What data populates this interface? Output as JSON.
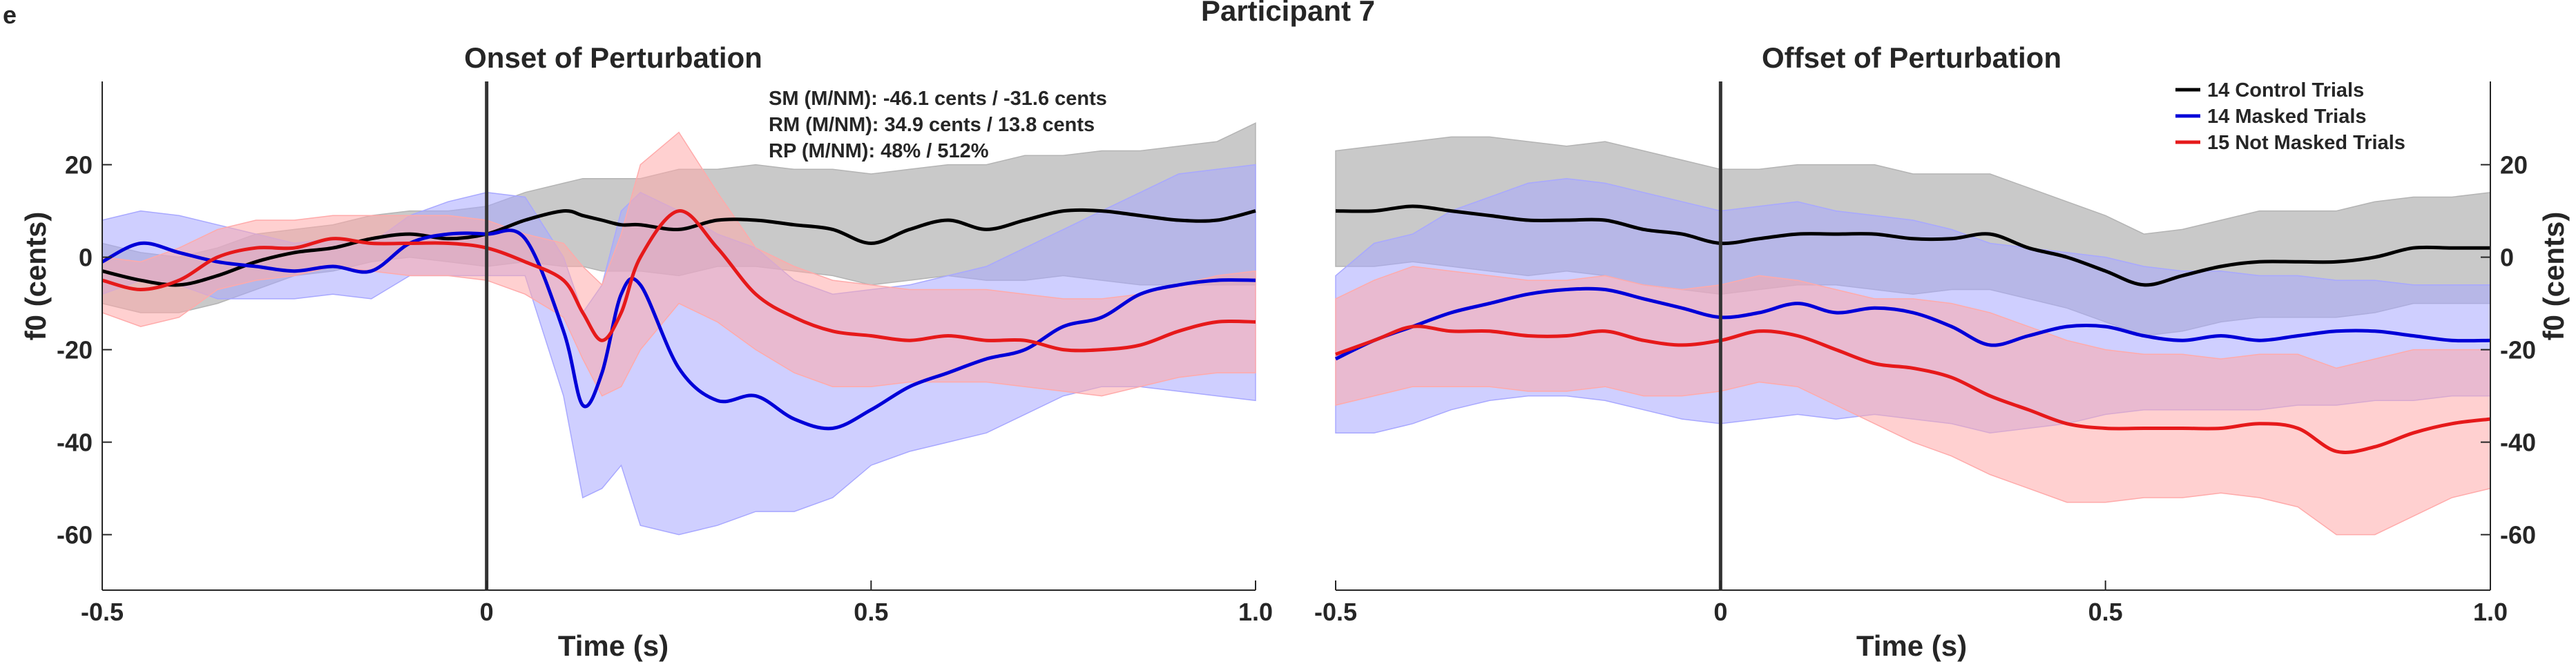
{
  "panel_letter": "e",
  "figure_title": "Participant 7",
  "colors": {
    "control": "#000000",
    "masked": "#0000d8",
    "not_masked": "#e6191a",
    "control_band": "#b4b4b4",
    "masked_band": "#a8a8ff",
    "not_masked_band": "#ffaaaa"
  },
  "chart_data": [
    {
      "type": "line",
      "title": "Onset of Perturbation",
      "xlabel": "Time (s)",
      "ylabel": "f0 (cents)",
      "xlim": [
        -0.5,
        1.0
      ],
      "ylim": [
        -72,
        38
      ],
      "xticks": [
        "-0.5",
        "0",
        "0.5",
        "1.0"
      ],
      "yticks": [
        "20",
        "0",
        "-20",
        "-40",
        "-60"
      ],
      "vline_x": 0,
      "annotations": [
        "SM (M/NM): -46.1 cents / -31.6 cents",
        "RM (M/NM): 34.9 cents / 13.8 cents",
        "RP (M/NM): 48% / 512%"
      ],
      "x": [
        -0.5,
        -0.45,
        -0.4,
        -0.35,
        -0.3,
        -0.25,
        -0.2,
        -0.15,
        -0.1,
        -0.05,
        0.0,
        0.05,
        0.1,
        0.125,
        0.15,
        0.175,
        0.2,
        0.25,
        0.3,
        0.35,
        0.4,
        0.45,
        0.5,
        0.55,
        0.6,
        0.65,
        0.7,
        0.75,
        0.8,
        0.85,
        0.9,
        0.95,
        1.0
      ],
      "series": [
        {
          "name": "14 Control Trials",
          "values": [
            -3,
            -5,
            -6,
            -4,
            -1,
            1,
            2,
            4,
            5,
            4,
            5,
            8,
            10,
            9,
            8,
            7,
            7,
            6,
            8,
            8,
            7,
            6,
            3,
            6,
            8,
            6,
            8,
            10,
            10,
            9,
            8,
            8,
            10
          ],
          "lower": [
            -10,
            -12,
            -12,
            -10,
            -7,
            -4,
            -3,
            -1,
            0,
            -1,
            -2,
            -1,
            -2,
            -2,
            -3,
            -3,
            -3,
            -4,
            -2,
            -2,
            -3,
            -4,
            -6,
            -5,
            -4,
            -5,
            -5,
            -4,
            -5,
            -6,
            -6,
            -6,
            -6
          ],
          "upper": [
            3,
            1,
            0,
            2,
            5,
            6,
            7,
            9,
            10,
            10,
            11,
            14,
            16,
            17,
            17,
            17,
            17,
            19,
            19,
            20,
            19,
            19,
            18,
            19,
            20,
            20,
            22,
            22,
            23,
            23,
            24,
            25,
            29
          ]
        },
        {
          "name": "14 Masked Trials",
          "values": [
            -1,
            3,
            1,
            -1,
            -2,
            -3,
            -2,
            -3,
            3,
            5,
            5,
            4,
            -16,
            -32,
            -25,
            -8,
            -6,
            -24,
            -31,
            -30,
            -35,
            -37,
            -33,
            -28,
            -25,
            -22,
            -20,
            -15,
            -13,
            -8,
            -6,
            -5,
            -5
          ],
          "lower": [
            -8,
            -5,
            -6,
            -9,
            -9,
            -9,
            -8,
            -9,
            -4,
            -4,
            -4,
            -4,
            -30,
            -52,
            -50,
            -45,
            -58,
            -60,
            -58,
            -55,
            -55,
            -52,
            -45,
            -42,
            -40,
            -38,
            -34,
            -30,
            -28,
            -28,
            -29,
            -30,
            -31
          ],
          "upper": [
            8,
            10,
            9,
            7,
            5,
            3,
            4,
            3,
            9,
            12,
            14,
            13,
            0,
            -12,
            -6,
            10,
            14,
            10,
            5,
            2,
            -5,
            -8,
            -7,
            -6,
            -4,
            -2,
            2,
            6,
            10,
            14,
            18,
            19,
            20
          ]
        },
        {
          "name": "15 Not Masked Trials",
          "values": [
            -5,
            -7,
            -5,
            0,
            2,
            2,
            4,
            3,
            3,
            3,
            2,
            -1,
            -5,
            -12,
            -18,
            -12,
            0,
            10,
            2,
            -8,
            -13,
            -16,
            -17,
            -18,
            -17,
            -18,
            -18,
            -20,
            -20,
            -19,
            -16,
            -14,
            -14
          ],
          "lower": [
            -12,
            -15,
            -13,
            -7,
            -5,
            -4,
            -2,
            -3,
            -4,
            -4,
            -5,
            -8,
            -13,
            -22,
            -30,
            -28,
            -20,
            -10,
            -14,
            -20,
            -25,
            -28,
            -28,
            -27,
            -27,
            -27,
            -28,
            -29,
            -30,
            -28,
            -26,
            -25,
            -25
          ],
          "upper": [
            0,
            -1,
            2,
            6,
            8,
            8,
            9,
            9,
            9,
            9,
            8,
            5,
            3,
            -2,
            -6,
            5,
            20,
            27,
            14,
            2,
            -2,
            -5,
            -6,
            -7,
            -7,
            -7,
            -8,
            -9,
            -9,
            -8,
            -6,
            -4,
            -3
          ]
        }
      ]
    },
    {
      "type": "line",
      "title": "Offset of Perturbation",
      "xlabel": "Time (s)",
      "ylabel": "f0 (cents)",
      "xlim": [
        -0.5,
        1.0
      ],
      "ylim": [
        -72,
        38
      ],
      "xticks": [
        "-0.5",
        "0",
        "0.5",
        "1.0"
      ],
      "yticks": [
        "20",
        "0",
        "-20",
        "-40",
        "-60"
      ],
      "vline_x": 0,
      "legend": "top-right",
      "x": [
        -0.5,
        -0.45,
        -0.4,
        -0.35,
        -0.3,
        -0.25,
        -0.2,
        -0.15,
        -0.1,
        -0.05,
        0.0,
        0.05,
        0.1,
        0.15,
        0.2,
        0.25,
        0.3,
        0.35,
        0.4,
        0.45,
        0.5,
        0.55,
        0.6,
        0.65,
        0.7,
        0.75,
        0.8,
        0.85,
        0.9,
        0.95,
        1.0
      ],
      "series": [
        {
          "name": "14 Control Trials",
          "values": [
            10,
            10,
            11,
            10,
            9,
            8,
            8,
            8,
            6,
            5,
            3,
            4,
            5,
            5,
            5,
            4,
            4,
            5,
            2,
            0,
            -3,
            -6,
            -4,
            -2,
            -1,
            -1,
            -1,
            0,
            2,
            2,
            2
          ],
          "lower": [
            -2,
            -2,
            -1,
            -2,
            -3,
            -4,
            -3,
            -4,
            -6,
            -7,
            -8,
            -7,
            -6,
            -6,
            -7,
            -8,
            -7,
            -7,
            -9,
            -11,
            -14,
            -17,
            -16,
            -14,
            -13,
            -13,
            -13,
            -12,
            -10,
            -10,
            -10
          ],
          "upper": [
            23,
            24,
            25,
            26,
            26,
            25,
            24,
            25,
            23,
            21,
            19,
            19,
            20,
            20,
            20,
            18,
            18,
            18,
            15,
            12,
            9,
            5,
            6,
            8,
            10,
            10,
            10,
            12,
            13,
            13,
            14
          ]
        },
        {
          "name": "14 Masked Trials",
          "values": [
            -22,
            -18,
            -15,
            -12,
            -10,
            -8,
            -7,
            -7,
            -9,
            -11,
            -13,
            -12,
            -10,
            -12,
            -11,
            -12,
            -15,
            -19,
            -17,
            -15,
            -15,
            -17,
            -18,
            -17,
            -18,
            -17,
            -16,
            -16,
            -17,
            -18,
            -18
          ],
          "lower": [
            -38,
            -38,
            -36,
            -33,
            -31,
            -30,
            -30,
            -31,
            -33,
            -35,
            -36,
            -35,
            -34,
            -35,
            -34,
            -35,
            -36,
            -38,
            -37,
            -36,
            -34,
            -33,
            -33,
            -33,
            -33,
            -32,
            -32,
            -31,
            -31,
            -30,
            -30
          ],
          "upper": [
            -4,
            3,
            5,
            10,
            13,
            16,
            17,
            16,
            14,
            12,
            10,
            11,
            12,
            10,
            9,
            8,
            6,
            3,
            2,
            1,
            0,
            -2,
            -3,
            -3,
            -4,
            -4,
            -5,
            -5,
            -6,
            -6,
            -6
          ]
        },
        {
          "name": "15 Not Masked Trials",
          "values": [
            -21,
            -18,
            -15,
            -16,
            -16,
            -17,
            -17,
            -16,
            -18,
            -19,
            -18,
            -16,
            -17,
            -20,
            -23,
            -24,
            -26,
            -30,
            -33,
            -36,
            -37,
            -37,
            -37,
            -37,
            -36,
            -37,
            -42,
            -41,
            -38,
            -36,
            -35
          ],
          "lower": [
            -32,
            -30,
            -28,
            -28,
            -28,
            -29,
            -29,
            -28,
            -30,
            -30,
            -29,
            -27,
            -28,
            -32,
            -36,
            -40,
            -43,
            -47,
            -50,
            -53,
            -53,
            -52,
            -52,
            -51,
            -52,
            -54,
            -60,
            -60,
            -56,
            -52,
            -50
          ],
          "upper": [
            -9,
            -5,
            -2,
            -3,
            -4,
            -5,
            -5,
            -4,
            -6,
            -7,
            -6,
            -4,
            -5,
            -7,
            -9,
            -9,
            -10,
            -12,
            -15,
            -18,
            -20,
            -21,
            -21,
            -22,
            -21,
            -21,
            -24,
            -22,
            -20,
            -20,
            -20
          ]
        }
      ]
    }
  ]
}
